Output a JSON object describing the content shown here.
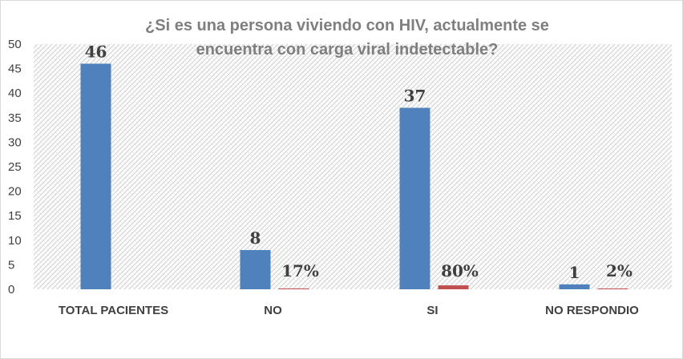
{
  "chart_data": {
    "type": "bar",
    "title_lines": [
      "¿Si es una persona viviendo con HIV, actualmente se",
      "encuentra con carga viral indetectable?"
    ],
    "categories": [
      "TOTAL PACIENTES",
      "NO",
      "SI",
      "NO RESPONDIO"
    ],
    "series": [
      {
        "values": [
          46,
          8,
          37,
          1
        ],
        "labels": [
          "46",
          "8",
          "37",
          "1"
        ],
        "color": "#4f81bd"
      },
      {
        "values": [
          null,
          0.17,
          0.8,
          0.02
        ],
        "labels": [
          "",
          "17%",
          "80%",
          "2%"
        ],
        "color": "#c0504d"
      }
    ],
    "ylim": [
      0,
      50
    ],
    "yticks": [
      0,
      5,
      10,
      15,
      20,
      25,
      30,
      35,
      40,
      45,
      50
    ],
    "grid": false,
    "plot_background": "hatched-gray"
  }
}
